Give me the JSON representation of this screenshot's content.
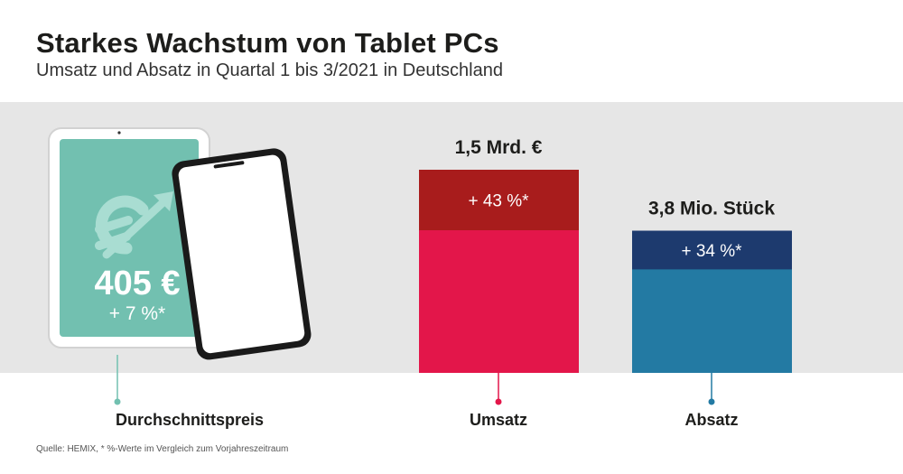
{
  "header": {
    "title": "Starkes Wachstum von Tablet PCs",
    "subtitle": "Umsatz und Absatz in Quartal 1 bis 3/2021 in Deutschland"
  },
  "source": "Quelle: HEMIX, * %-Werte im Vergleich zum Vorjahreszeitraum",
  "colors": {
    "band": "#e6e6e6",
    "tablet_screen": "#72c0b0",
    "umsatz_top": "#a81c1c",
    "umsatz_main": "#e3164a",
    "absatz_top": "#1d3a6e",
    "absatz_main": "#237aa3"
  },
  "chart_data": {
    "type": "bar",
    "title": "Starkes Wachstum von Tablet PCs",
    "subtitle": "Umsatz und Absatz in Quartal 1 bis 3/2021 in Deutschland",
    "tablet": {
      "label": "Durchschnittspreis",
      "value_label": "405 €",
      "change_label": "+ 7 %*",
      "value": 405,
      "change_pct": 7
    },
    "categories": [
      "Umsatz",
      "Absatz"
    ],
    "bars": [
      {
        "category": "Umsatz",
        "value_label": "1,5 Mrd. €",
        "change_label": "+ 43 %*",
        "value": 1.5,
        "change_pct": 43,
        "relative_height": 1.0
      },
      {
        "category": "Absatz",
        "value_label": "3,8 Mio. Stück",
        "change_label": "+ 34 %*",
        "value": 3.8,
        "change_pct": 34,
        "relative_height": 0.7
      }
    ]
  }
}
